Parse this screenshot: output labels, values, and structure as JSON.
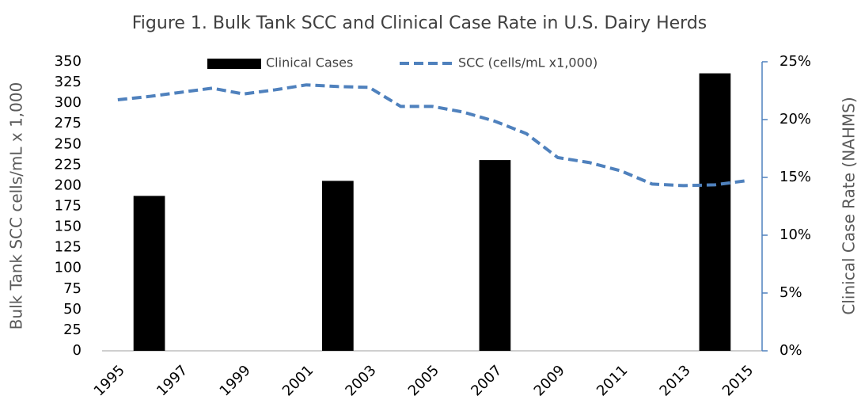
{
  "chart_data": {
    "type": "bar_line",
    "title": "Figure 1.  Bulk Tank SCC and Clinical Case Rate in U.S. Dairy Herds",
    "y_label": "Bulk Tank SCC cells/mL x 1,000",
    "y2_label": "Clinical Case Rate (NAHMS)",
    "categories": [
      "1995",
      null,
      "1997",
      null,
      "1999",
      null,
      "2001",
      null,
      "2003",
      null,
      "2005",
      null,
      "2007",
      null,
      "2009",
      null,
      "2011",
      null,
      "2013",
      null,
      "2015"
    ],
    "series": [
      {
        "name": "Clinical Cases",
        "type": "bar",
        "axis": "y2",
        "color": "#000000",
        "values": [
          null,
          13.4,
          null,
          null,
          null,
          null,
          null,
          14.7,
          null,
          null,
          null,
          null,
          16.5,
          null,
          null,
          null,
          null,
          null,
          null,
          24.0,
          null
        ]
      },
      {
        "name": "SCC (cells/mL x1,000)",
        "type": "line",
        "axis": "y",
        "color": "#4f81bd",
        "dashed": true,
        "values": [
          304,
          308,
          313,
          318,
          311,
          316,
          322,
          320,
          319,
          296,
          296,
          289,
          278,
          263,
          234,
          228,
          218,
          202,
          200,
          201,
          206
        ]
      }
    ],
    "ylim": [
      0,
      350
    ],
    "yticks": [
      0,
      25,
      50,
      75,
      100,
      125,
      150,
      175,
      200,
      225,
      250,
      275,
      300,
      325,
      350
    ],
    "y2lim": [
      0,
      25
    ],
    "y2ticks": [
      {
        "value": 0,
        "label": "0%"
      },
      {
        "value": 5,
        "label": "5%"
      },
      {
        "value": 10,
        "label": "10%"
      },
      {
        "value": 15,
        "label": "15%"
      },
      {
        "value": 20,
        "label": "20%"
      },
      {
        "value": 25,
        "label": "25%"
      }
    ],
    "legend": "top"
  }
}
